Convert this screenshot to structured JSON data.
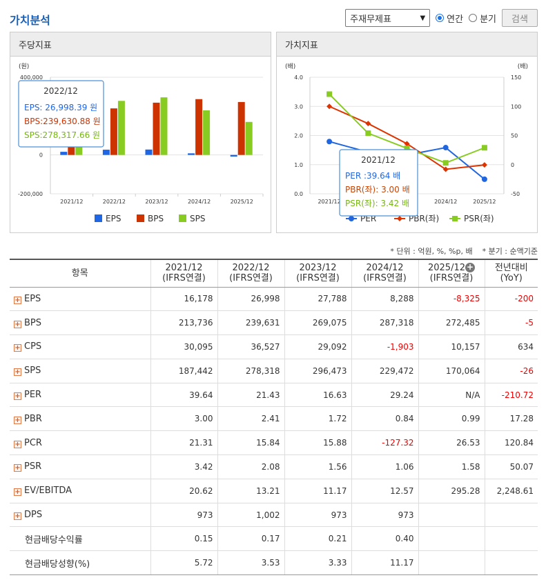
{
  "page": {
    "title": "가치분석"
  },
  "controls": {
    "report_select": "주재무제표",
    "radio_annual": "연간",
    "radio_quarter": "분기",
    "search_label": "검색",
    "colors": {
      "accent": "#1a73e8"
    }
  },
  "left_panel": {
    "title": "주당지표",
    "chart_data": {
      "type": "bar",
      "title": "",
      "xlabel": "",
      "ylabel": "(원)",
      "ylim": [
        -200000,
        400000
      ],
      "yticks": [
        "400,000",
        "0",
        "-200,000"
      ],
      "categories": [
        "2021/12",
        "2022/12",
        "2023/12",
        "2024/12",
        "2025/12"
      ],
      "series": [
        {
          "name": "EPS",
          "color": "#1f66e5",
          "values": [
            16178,
            26998,
            27788,
            8288,
            -8325
          ]
        },
        {
          "name": "BPS",
          "color": "#cc3300",
          "values": [
            213736,
            239631,
            269075,
            287318,
            272485
          ]
        },
        {
          "name": "SPS",
          "color": "#88cc22",
          "values": [
            187442,
            278318,
            296473,
            229472,
            170064
          ]
        }
      ],
      "legend": [
        "EPS",
        "BPS",
        "SPS"
      ],
      "tooltip": {
        "title": "2022/12",
        "lines": [
          "EPS:  26,998.39  원",
          "BPS:239,630.88  원",
          "SPS:278,317.66  원"
        ]
      }
    }
  },
  "right_panel": {
    "title": "가치지표",
    "chart_data": {
      "type": "line",
      "title": "",
      "ylabel_left": "(배)",
      "ylabel_right": "(배)",
      "ylim_left": [
        0,
        4
      ],
      "ylim_right": [
        -50,
        150
      ],
      "yticks_left": [
        "4.0",
        "3.0",
        "2.0",
        "1.0",
        "0.0"
      ],
      "yticks_right": [
        "150",
        "100",
        "50",
        "0",
        "-50"
      ],
      "categories": [
        "2021/12",
        "2022/12",
        "2023/12",
        "2024/12",
        "2025/12"
      ],
      "series": [
        {
          "name": "PER",
          "axis": "right",
          "color": "#2266dd",
          "values": [
            39.64,
            21.43,
            16.63,
            29.24,
            null
          ]
        },
        {
          "name": "PBR(좌)",
          "axis": "left",
          "color": "#dd3300",
          "values": [
            3.0,
            2.41,
            1.72,
            0.84,
            0.99
          ]
        },
        {
          "name": "PSR(좌)",
          "axis": "left",
          "color": "#88cc22",
          "values": [
            3.42,
            2.08,
            1.56,
            1.06,
            1.58
          ]
        }
      ],
      "legend": [
        "PER",
        "PBR(좌)",
        "PSR(좌)"
      ],
      "tooltip": {
        "title": "2021/12",
        "lines": [
          "PER       :39.64  배",
          "PBR(좌): 3.00  배",
          "PSR(좌): 3.42  배"
        ]
      }
    }
  },
  "notes": {
    "unit": "* 단위 : 억원, %, %p, 배",
    "quarter": "* 분기 : 순액기준"
  },
  "table": {
    "headers": [
      {
        "line1": "항목",
        "line2": ""
      },
      {
        "line1": "2021/12",
        "line2": "(IFRS연결)"
      },
      {
        "line1": "2022/12",
        "line2": "(IFRS연결)"
      },
      {
        "line1": "2023/12",
        "line2": "(IFRS연결)"
      },
      {
        "line1": "2024/12",
        "line2": "(IFRS연결)"
      },
      {
        "line1": "2025/12",
        "line2": "(IFRS연결)"
      },
      {
        "line1": "전년대비",
        "line2": "(YoY)"
      }
    ],
    "rows": [
      {
        "label": "EPS",
        "expand": true,
        "values": [
          "16,178",
          "26,998",
          "27,788",
          "8,288",
          "-8,325",
          "-200"
        ]
      },
      {
        "label": "BPS",
        "expand": true,
        "values": [
          "213,736",
          "239,631",
          "269,075",
          "287,318",
          "272,485",
          "-5"
        ]
      },
      {
        "label": "CPS",
        "expand": true,
        "values": [
          "30,095",
          "36,527",
          "29,092",
          "-1,903",
          "10,157",
          "634"
        ]
      },
      {
        "label": "SPS",
        "expand": true,
        "values": [
          "187,442",
          "278,318",
          "296,473",
          "229,472",
          "170,064",
          "-26"
        ]
      },
      {
        "label": "PER",
        "expand": true,
        "values": [
          "39.64",
          "21.43",
          "16.63",
          "29.24",
          "N/A",
          "-210.72"
        ]
      },
      {
        "label": "PBR",
        "expand": true,
        "values": [
          "3.00",
          "2.41",
          "1.72",
          "0.84",
          "0.99",
          "17.28"
        ]
      },
      {
        "label": "PCR",
        "expand": true,
        "values": [
          "21.31",
          "15.84",
          "15.88",
          "-127.32",
          "26.53",
          "120.84"
        ]
      },
      {
        "label": "PSR",
        "expand": true,
        "values": [
          "3.42",
          "2.08",
          "1.56",
          "1.06",
          "1.58",
          "50.07"
        ]
      },
      {
        "label": "EV/EBITDA",
        "expand": true,
        "values": [
          "20.62",
          "13.21",
          "11.17",
          "12.57",
          "295.28",
          "2,248.61"
        ]
      },
      {
        "label": "DPS",
        "expand": true,
        "values": [
          "973",
          "1,002",
          "973",
          "973",
          "",
          ""
        ]
      },
      {
        "label": "현금배당수익률",
        "expand": false,
        "values": [
          "0.15",
          "0.17",
          "0.21",
          "0.40",
          "",
          ""
        ]
      },
      {
        "label": "현금배당성향(%)",
        "expand": false,
        "values": [
          "5.72",
          "3.53",
          "3.33",
          "11.17",
          "",
          ""
        ]
      }
    ]
  }
}
